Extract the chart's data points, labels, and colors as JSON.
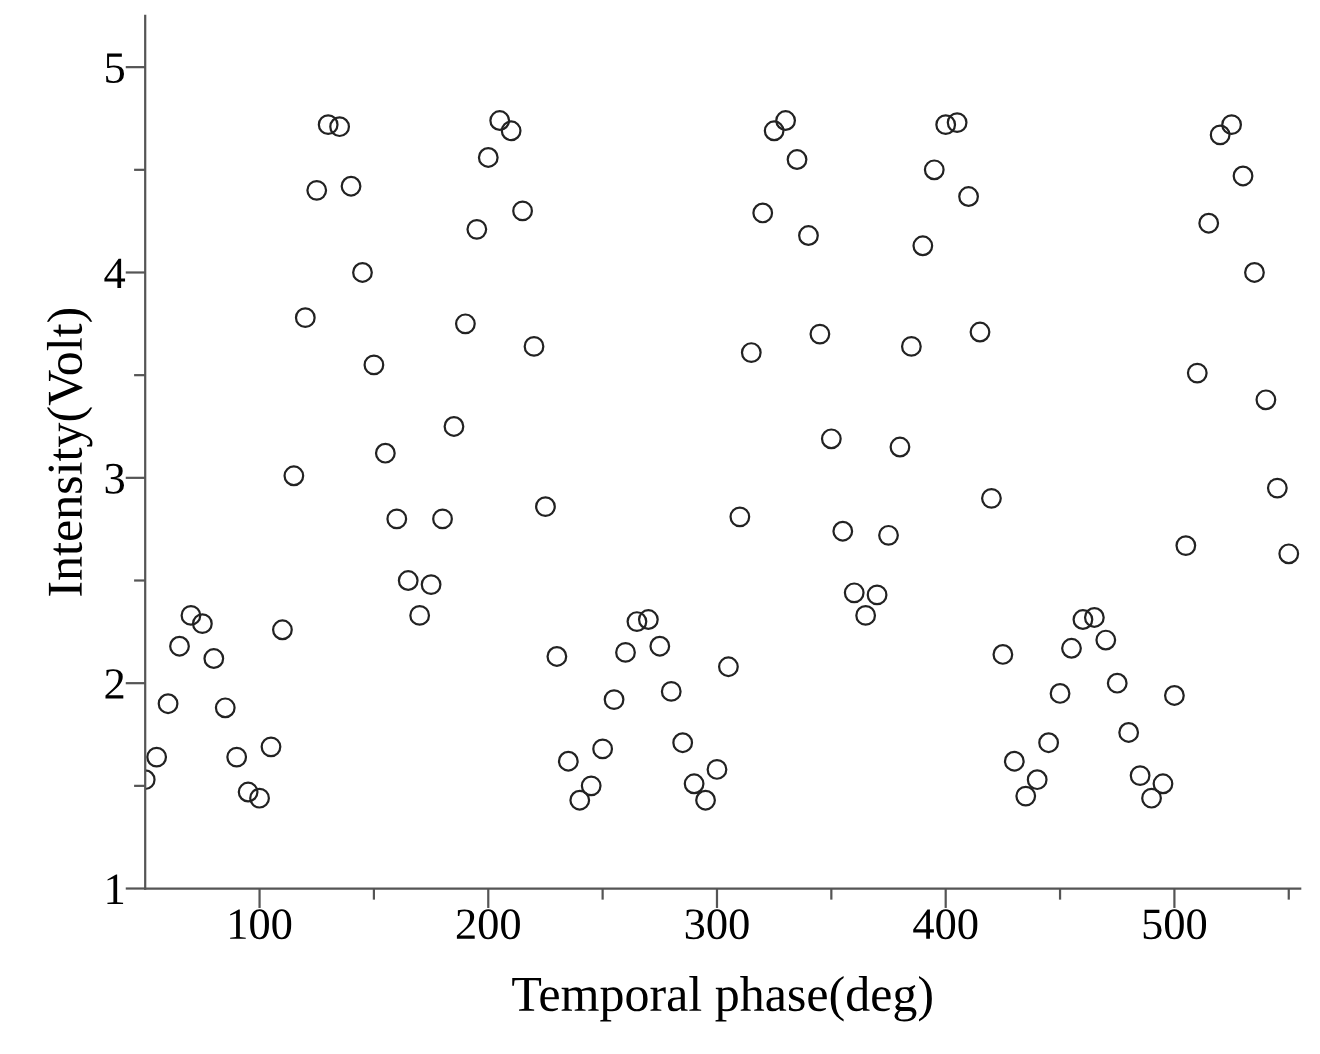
{
  "chart_data": {
    "type": "scatter",
    "xlabel": "Temporal phase(deg)",
    "ylabel": "Intensity(Volt)",
    "x": [
      50,
      55,
      60,
      65,
      70,
      75,
      80,
      85,
      90,
      95,
      100,
      105,
      110,
      115,
      120,
      125,
      130,
      135,
      140,
      145,
      150,
      155,
      160,
      165,
      170,
      175,
      180,
      185,
      190,
      195,
      200,
      205,
      210,
      215,
      220,
      225,
      230,
      235,
      240,
      245,
      250,
      255,
      260,
      265,
      270,
      275,
      280,
      285,
      290,
      295,
      300,
      305,
      310,
      315,
      320,
      325,
      330,
      335,
      340,
      345,
      350,
      355,
      360,
      365,
      370,
      375,
      380,
      385,
      390,
      395,
      400,
      405,
      410,
      415,
      420,
      425,
      430,
      435,
      440,
      445,
      450,
      455,
      460,
      465,
      470,
      475,
      480,
      485,
      490,
      495,
      500,
      505,
      510,
      515,
      520,
      525,
      530,
      535,
      540,
      545,
      550
    ],
    "series": [
      {
        "color": "#222222",
        "values": [
          1.53,
          1.64,
          1.9,
          2.18,
          2.33,
          2.29,
          2.12,
          1.88,
          1.64,
          1.47,
          1.44,
          1.69,
          2.26,
          3.01,
          3.78,
          4.4,
          4.72,
          4.71,
          4.42,
          4.0,
          3.55,
          3.12,
          2.8,
          2.5,
          2.33,
          2.48,
          2.8,
          3.25,
          3.75,
          4.21,
          4.56,
          4.74,
          4.69,
          4.3,
          3.64,
          2.86,
          2.13,
          1.62,
          1.43,
          1.5,
          1.68,
          1.92,
          2.15,
          2.3,
          2.31,
          2.18,
          1.96,
          1.71,
          1.51,
          1.43,
          1.58,
          2.08,
          2.81,
          3.61,
          4.29,
          4.69,
          4.74,
          4.55,
          4.18,
          3.7,
          3.19,
          2.74,
          2.44,
          2.33,
          2.43,
          2.72,
          3.15,
          3.64,
          4.13,
          4.5,
          4.72,
          4.73,
          4.37,
          3.71,
          2.9,
          2.14,
          1.62,
          1.45,
          1.53,
          1.71,
          1.95,
          2.17,
          2.31,
          2.32,
          2.21,
          2.0,
          1.76,
          1.55,
          1.44,
          1.51,
          1.94,
          2.67,
          3.51,
          4.24,
          4.67,
          4.72,
          4.47,
          4.0,
          3.38,
          2.95,
          2.63
        ]
      }
    ],
    "marker": "circle",
    "xlim": [
      50,
      555
    ],
    "xticks": [
      100,
      {
        "value": 150,
        "label": null
      },
      200,
      {
        "value": 250,
        "label": null
      },
      300,
      {
        "value": 350,
        "label": null
      },
      400,
      {
        "value": 450,
        "label": null
      },
      500,
      {
        "value": 550,
        "label": null
      }
    ],
    "ylim": [
      1,
      5.25
    ],
    "yticks": [
      1,
      {
        "value": 1.5,
        "label": null
      },
      2,
      {
        "value": 2.5,
        "label": null
      },
      3,
      {
        "value": 3.5,
        "label": null
      },
      4,
      {
        "value": 4.5,
        "label": null
      },
      5
    ],
    "line_style": "none"
  }
}
